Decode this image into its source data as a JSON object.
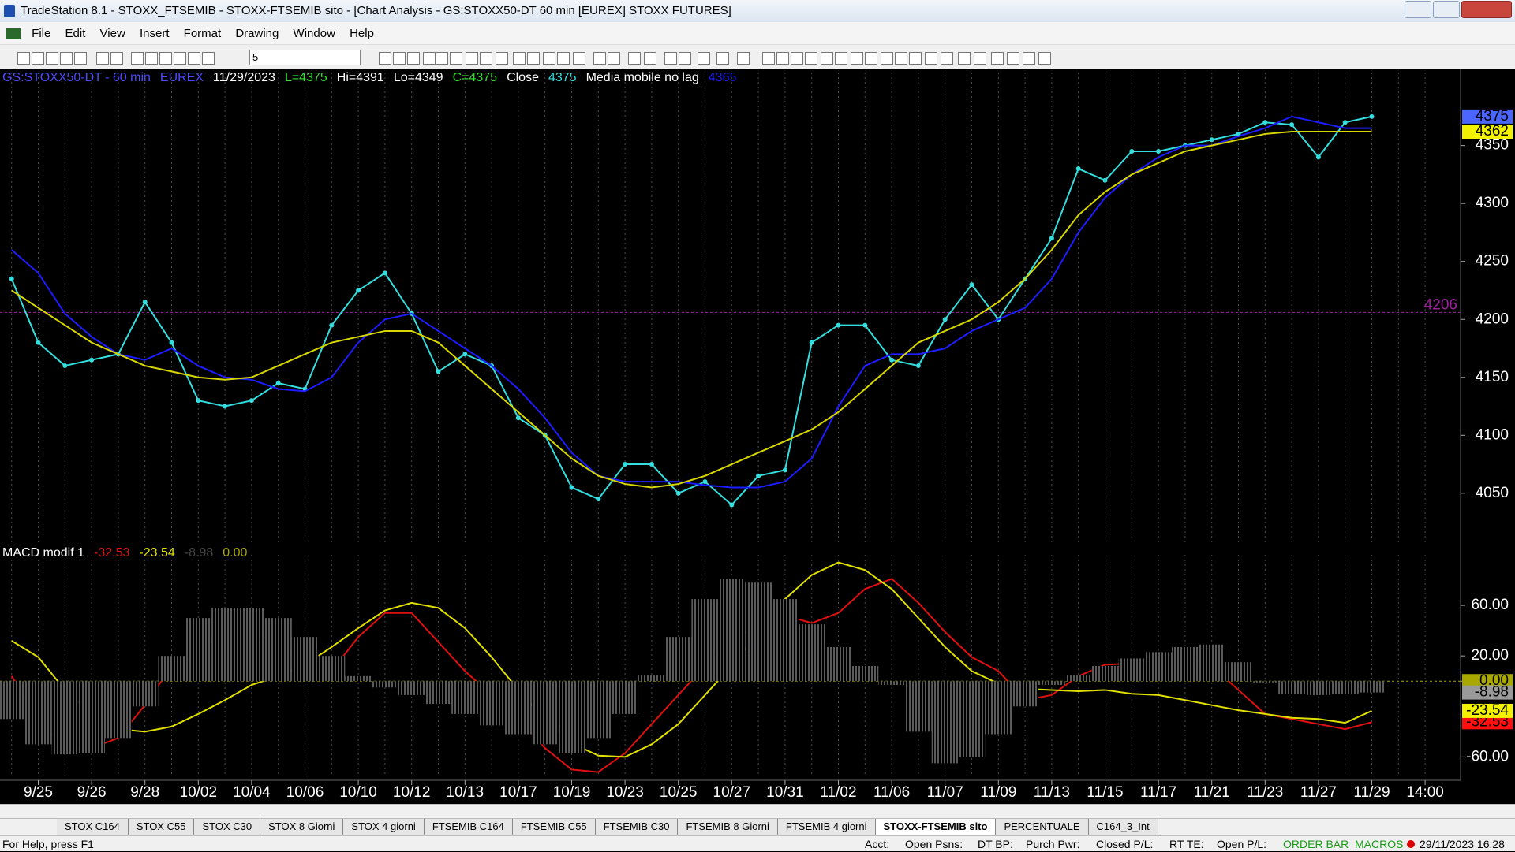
{
  "window": {
    "title": "TradeStation 8.1 - STOXX_FTSEMIB - STOXX-FTSEMIB sito - [Chart Analysis - GS:STOXX50-DT  60 min  [EUREX] STOXX FUTURES]"
  },
  "menu": [
    "File",
    "Edit",
    "View",
    "Insert",
    "Format",
    "Drawing",
    "Window",
    "Help"
  ],
  "toolbar": {
    "combo": "5"
  },
  "chart_data": [
    {
      "type": "line",
      "title": "GS:STOXX50-DT - 60 min",
      "exchange": "EUREX",
      "date": "11/29/2023",
      "stats": [
        "L=4375",
        "Hi=4391",
        "Lo=4349",
        "C=4375"
      ],
      "categories": [
        null,
        "9/25",
        null,
        "9/26",
        null,
        "9/28",
        null,
        "10/02",
        null,
        "10/04",
        null,
        "10/06",
        null,
        "10/10",
        null,
        "10/12",
        null,
        "10/13",
        null,
        "10/17",
        null,
        "10/19",
        null,
        "10/23",
        null,
        "10/25",
        null,
        "10/27",
        null,
        "10/31",
        null,
        "11/02",
        null,
        "11/06",
        null,
        "11/07",
        null,
        "11/09",
        null,
        "11/13",
        null,
        "11/15",
        null,
        "11/17",
        null,
        "11/21",
        null,
        "11/23",
        null,
        "11/27",
        null,
        "11/29",
        null,
        "14:00"
      ],
      "ylim": [
        4005,
        4413
      ],
      "yticks": [
        4050,
        4100,
        4150,
        4200,
        4250,
        4300,
        4350
      ],
      "hline": {
        "value": 4206,
        "color": "#a020a0"
      },
      "series": [
        {
          "name": "Close",
          "color": "#33dede",
          "markers": true,
          "box_color": "#4a66ff",
          "values": [
            4235,
            4180,
            4160,
            4165,
            4170,
            4215,
            4180,
            4130,
            4125,
            4130,
            4145,
            4140,
            4195,
            4225,
            4240,
            4205,
            4155,
            4170,
            4160,
            4115,
            4100,
            4055,
            4045,
            4075,
            4075,
            4050,
            4060,
            4040,
            4065,
            4070,
            4180,
            4195,
            4195,
            4165,
            4160,
            4200,
            4230,
            4200,
            4235,
            4270,
            4330,
            4320,
            4345,
            4345,
            4350,
            4355,
            4360,
            4370,
            4368,
            4340,
            4370,
            4375,
            null,
            null
          ]
        },
        {
          "name": "Media mobile no lag",
          "color": "#1c1cff",
          "values": [
            4260,
            4240,
            4205,
            4185,
            4170,
            4165,
            4175,
            4160,
            4150,
            4148,
            4140,
            4138,
            4150,
            4180,
            4200,
            4205,
            4190,
            4175,
            4160,
            4140,
            4115,
            4085,
            4065,
            4060,
            4060,
            4060,
            4057,
            4055,
            4055,
            4060,
            4080,
            4125,
            4160,
            4170,
            4170,
            4175,
            4190,
            4200,
            4210,
            4235,
            4275,
            4305,
            4325,
            4340,
            4350,
            4350,
            4358,
            4365,
            4375,
            4370,
            4365,
            4365,
            null,
            null
          ]
        },
        {
          "color": "#d8d800",
          "box_color": "#f2f200",
          "values": [
            4225,
            4210,
            4195,
            4180,
            4170,
            4160,
            4155,
            4150,
            4148,
            4150,
            4160,
            4170,
            4180,
            4185,
            4190,
            4190,
            4180,
            4160,
            4140,
            4120,
            4100,
            4080,
            4065,
            4058,
            4055,
            4058,
            4065,
            4075,
            4085,
            4095,
            4105,
            4120,
            4140,
            4160,
            4180,
            4190,
            4200,
            4215,
            4235,
            4260,
            4290,
            4310,
            4325,
            4335,
            4345,
            4350,
            4355,
            4360,
            4362,
            4362,
            4362,
            4362,
            null,
            null
          ]
        }
      ]
    },
    {
      "type": "line",
      "title": "MACD modif 1",
      "ylim": [
        -76,
        100
      ],
      "yticks": [
        {
          "value": 60,
          "label": "60.00"
        },
        {
          "value": 20,
          "label": "20.00"
        },
        {
          "value": 0,
          "label": "0.00"
        },
        {
          "value": -60,
          "label": "-60.00"
        }
      ],
      "hline": {
        "value": 0,
        "label": "0.00",
        "color": "#a8a800"
      },
      "series": [
        {
          "color": "#e01010",
          "box_color": "#ff1010",
          "values": [
            4,
            -30,
            -55,
            -53,
            -45,
            -19,
            12,
            27,
            35,
            42,
            27,
            16,
            8,
            35,
            54,
            54,
            31,
            8,
            -11,
            -30,
            -53,
            -70,
            -72,
            -57,
            -34,
            -11,
            12,
            31,
            46,
            52,
            46,
            54,
            73,
            81,
            62,
            39,
            19,
            8,
            -15,
            -11,
            4,
            13,
            14,
            16,
            19,
            12,
            -7,
            -26,
            -30,
            -34,
            -38,
            -32.53,
            null,
            null
          ]
        },
        {
          "color": "#e0e000",
          "box_color": "#f2f200",
          "values": [
            32,
            19,
            -7,
            -26,
            -38,
            -40,
            -36,
            -26,
            -15,
            -3,
            4,
            13,
            27,
            42,
            56,
            62,
            58,
            42,
            19,
            -7,
            -30,
            -49,
            -59,
            -60,
            -50,
            -34,
            -11,
            12,
            39,
            65,
            84,
            94,
            88,
            73,
            50,
            27,
            8,
            -2,
            -6,
            -7,
            -8,
            -7,
            -10,
            -11,
            -15,
            -19,
            -23,
            -26,
            -29,
            -30,
            -33,
            -23.54,
            null,
            null
          ]
        },
        {
          "type": "bar",
          "color": "#8c8c8c",
          "box_color": "#9a9a9a",
          "values": [
            -30,
            -50,
            -58,
            -57,
            -45,
            -20,
            20,
            50,
            58,
            58,
            50,
            35,
            20,
            4,
            -5,
            -11,
            -18,
            -26,
            -35,
            -42,
            -50,
            -57,
            -45,
            -26,
            5,
            35,
            65,
            81,
            78,
            65,
            45,
            27,
            12,
            -3,
            -40,
            -65,
            -60,
            -42,
            -20,
            -3,
            5,
            12,
            18,
            23,
            27,
            29,
            15,
            -1,
            -10,
            -11,
            -10,
            -8.98,
            null,
            null
          ]
        }
      ]
    }
  ],
  "tabs": [
    "STOX C164",
    "STOX C55",
    "STOX  C30",
    "STOX  8 Giorni",
    "STOX 4 giorni",
    "FTSEMIB C164",
    "FTSEMIB C55",
    "FTSEMIB C30",
    "FTSEMIB  8 Giorni",
    "FTSEMIB  4 giorni",
    "STOXX-FTSEMIB sito",
    "PERCENTUALE",
    "C164_3_Int"
  ],
  "status_bar": {
    "help": "For Help, press F1",
    "fields": [
      "Acct:",
      "Open Psns:",
      "DT BP:",
      "Purch Pwr:",
      "Closed P/L:",
      "RT TE:",
      "Open P/L:"
    ],
    "macros": "ORDER BAR  MACROS",
    "datetime": "29/11/2023 16:28"
  }
}
